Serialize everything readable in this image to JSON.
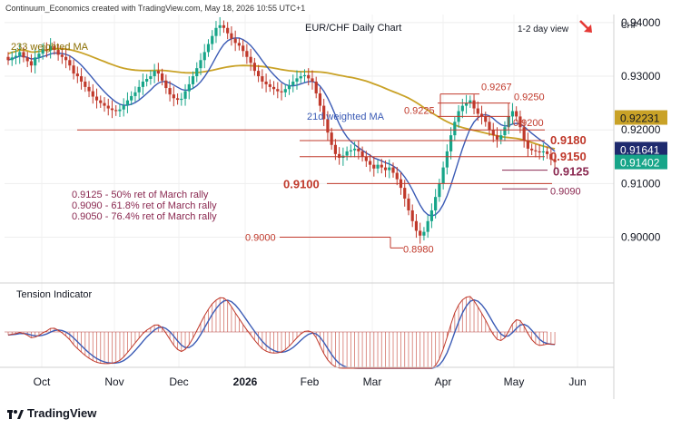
{
  "header": {
    "credit": "Continuum_Economics created with TradingView.com, May 18, 2026 10:55 UTC+1",
    "title": "EUR/CHF Daily Chart",
    "view": "1-2 day view",
    "currency": "CHF"
  },
  "footer": {
    "brand": "TradingView"
  },
  "colors": {
    "up": "#17a589",
    "down": "#c0392b",
    "ma233": "#c9a227",
    "ma21": "#3b5bb5",
    "level": "#c0392b",
    "note": "#8a2850",
    "tension": "#c0392b",
    "tension_signal": "#3b5bb5"
  },
  "chart_data": {
    "type": "candlestick",
    "title": "EUR/CHF Daily Chart",
    "y_axis": {
      "ticks": [
        "0.94000",
        "0.93000",
        "0.92000",
        "0.91000",
        "0.90000"
      ],
      "range": [
        0.8935,
        0.9415
      ]
    },
    "x_axis": {
      "ticks": [
        "Oct",
        "Nov",
        "Dec",
        "2026",
        "Feb",
        "Mar",
        "Apr",
        "May",
        "Jun"
      ]
    },
    "price_badges": [
      {
        "label": "0.92231",
        "value": 0.92231,
        "color": "#c9a227"
      },
      {
        "label": "0.91641",
        "value": 0.91641,
        "color": "#1e2a6e"
      },
      {
        "label": "0.91402",
        "value": 0.91402,
        "color": "#17a589"
      }
    ],
    "series_labels": [
      {
        "name": "233 weighted MA",
        "color": "#c9a227"
      },
      {
        "name": "21d weighted MA",
        "color": "#3b5bb5"
      }
    ],
    "levels": [
      {
        "label": "0.9267",
        "value": 0.9267
      },
      {
        "label": "0.9250",
        "value": 0.925
      },
      {
        "label": "0.9225",
        "value": 0.9225
      },
      {
        "label": "0.9200",
        "value": 0.92
      },
      {
        "label": "0.9180",
        "value": 0.918
      },
      {
        "label": "0.9150",
        "value": 0.915
      },
      {
        "label": "0.9125",
        "value": 0.9125
      },
      {
        "label": "0.9100",
        "value": 0.91
      },
      {
        "label": "0.9090",
        "value": 0.909
      },
      {
        "label": "0.9000",
        "value": 0.9
      },
      {
        "label": "0.8980",
        "value": 0.898
      }
    ],
    "notes": [
      "0.9125 - 50% ret of March rally",
      "0.9090 - 61.8% ret of March rally",
      "0.9050 - 76.4% ret of March rally"
    ],
    "tension_label": "Tension Indicator",
    "closes": [
      0.933,
      0.9335,
      0.9338,
      0.9345,
      0.9335,
      0.9328,
      0.932,
      0.9335,
      0.9342,
      0.935,
      0.9348,
      0.9356,
      0.9349,
      0.934,
      0.9336,
      0.933,
      0.932,
      0.9305,
      0.93,
      0.929,
      0.928,
      0.9272,
      0.9262,
      0.9255,
      0.925,
      0.9245,
      0.924,
      0.9237,
      0.9235,
      0.9238,
      0.9246,
      0.9255,
      0.9263,
      0.927,
      0.928,
      0.929,
      0.9295,
      0.93,
      0.931,
      0.9305,
      0.9292,
      0.9278,
      0.9266,
      0.9259,
      0.9256,
      0.9258,
      0.9272,
      0.9285,
      0.93,
      0.9315,
      0.933,
      0.9345,
      0.936,
      0.9375,
      0.939,
      0.9395,
      0.939,
      0.938,
      0.937,
      0.9362,
      0.9357,
      0.9347,
      0.9336,
      0.9325,
      0.931,
      0.93,
      0.929,
      0.9285,
      0.928,
      0.9276,
      0.9272,
      0.927,
      0.9276,
      0.9283,
      0.929,
      0.9296,
      0.93,
      0.9302,
      0.9296,
      0.929,
      0.9268,
      0.9245,
      0.922,
      0.9195,
      0.9172,
      0.9155,
      0.9148,
      0.9152,
      0.916,
      0.9162,
      0.9165,
      0.916,
      0.915,
      0.9142,
      0.9135,
      0.9128,
      0.9135,
      0.913,
      0.9125,
      0.913,
      0.912,
      0.9108,
      0.9092,
      0.9072,
      0.905,
      0.903,
      0.9012,
      0.9003,
      0.901,
      0.903,
      0.905,
      0.9075,
      0.91,
      0.913,
      0.916,
      0.919,
      0.9215,
      0.9235,
      0.9245,
      0.925,
      0.9255,
      0.924,
      0.923,
      0.9225,
      0.9215,
      0.92,
      0.919,
      0.9182,
      0.919,
      0.9205,
      0.9225,
      0.9235,
      0.9225,
      0.9205,
      0.918,
      0.9165,
      0.9162,
      0.916,
      0.9158,
      0.916,
      0.9155,
      0.9145,
      0.914
    ]
  }
}
